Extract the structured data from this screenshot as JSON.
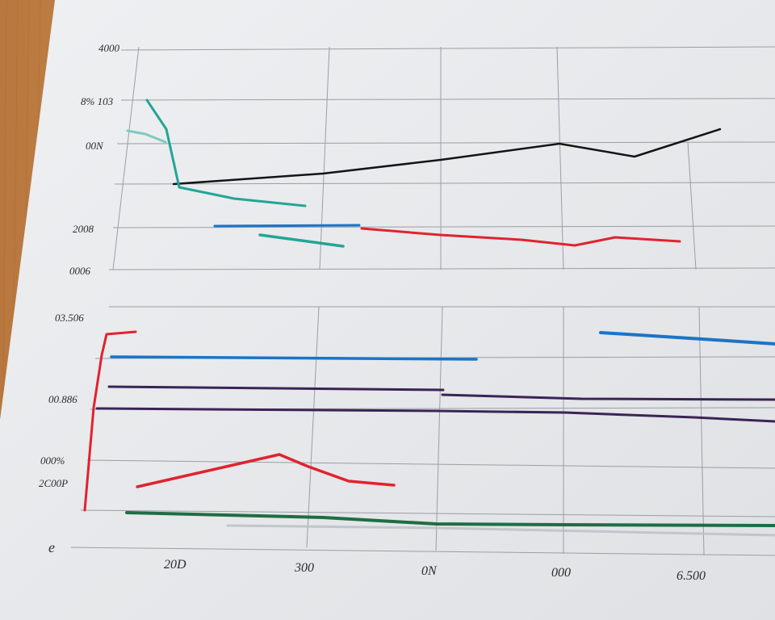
{
  "photo": {
    "subject": "paper-printout-line-chart",
    "colors": {
      "table": "#c98a4b",
      "paper": "#e9eaec",
      "grid": "#9a9ea6",
      "black": "#141414",
      "teal": "#23a595",
      "blue": "#1b74c7",
      "red": "#e0232f",
      "purple": "#3a2455",
      "green": "#1e6e43"
    }
  },
  "upper_panel": {
    "y_ticks": [
      "4000",
      "8% 103",
      "00N",
      "2008",
      "0006"
    ]
  },
  "lower_panel": {
    "y_ticks": [
      "03.506",
      "00.886",
      "000%",
      "2C00P",
      "e"
    ],
    "x_ticks": [
      "20D",
      "300",
      "0N",
      "000",
      "6.500"
    ]
  }
}
